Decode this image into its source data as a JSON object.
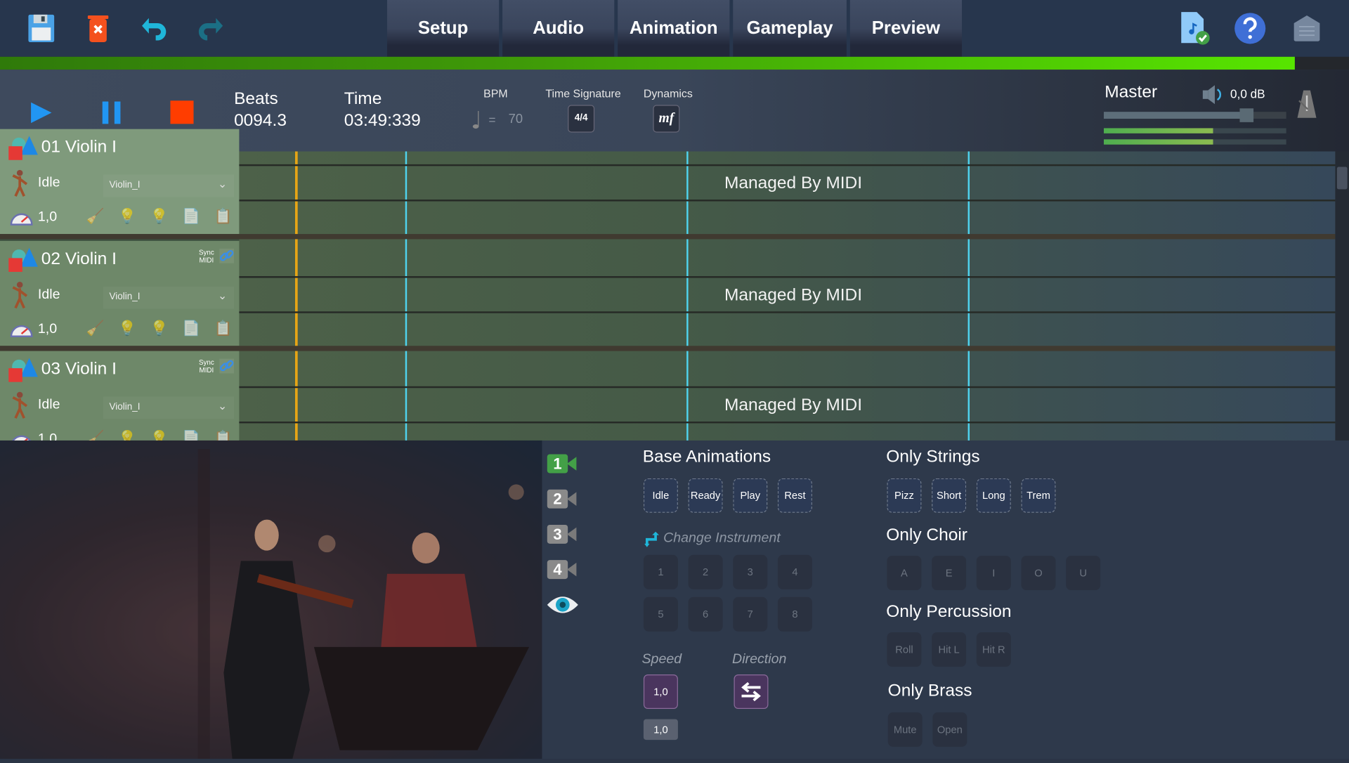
{
  "toolbar": {
    "icons": [
      "save-icon",
      "delete-icon",
      "undo-icon",
      "redo-icon"
    ],
    "right_icons": [
      "midi-file-ok-icon",
      "help-icon",
      "home-icon"
    ]
  },
  "tabs": [
    "Setup",
    "Audio",
    "Animation",
    "Gameplay",
    "Preview"
  ],
  "progress": 0.96,
  "transport": {
    "beats_label": "Beats",
    "beats": "0094.3",
    "time_label": "Time",
    "time": "03:49:339",
    "bpm_label": "BPM",
    "bpm_eq": "=",
    "bpm": "70",
    "timesig_label": "Time Signature",
    "timesig": "4/4",
    "dynamics_label": "Dynamics",
    "dynamics": "mf"
  },
  "master": {
    "label": "Master",
    "db": "0,0 dB",
    "volume": 0.8,
    "meter_l": 0.6,
    "meter_r": 0.6
  },
  "tracks": [
    {
      "name": "01 Violin I",
      "state": "Idle",
      "instrument": "Violin_I",
      "speed": "1,0",
      "lane_text": "Managed By MIDI"
    },
    {
      "name": "02 Violin I",
      "state": "Idle",
      "instrument": "Violin_I",
      "speed": "1,0",
      "lane_text": "Managed By MIDI",
      "sync": "Sync MIDI"
    },
    {
      "name": "03 Violin I",
      "state": "Idle",
      "instrument": "Violin_I",
      "speed": "1,0",
      "lane_text": "Managed By MIDI",
      "sync": "Sync MIDI"
    }
  ],
  "cameras": [
    "1",
    "2",
    "3",
    "4"
  ],
  "panel": {
    "base_title": "Base Animations",
    "base": [
      "Idle",
      "Ready",
      "Play",
      "Rest"
    ],
    "change_instrument": "Change Instrument",
    "instruments": [
      "1",
      "2",
      "3",
      "4",
      "5",
      "6",
      "7",
      "8"
    ],
    "speed_label": "Speed",
    "speed": "1,0",
    "speed_small": "1,0",
    "direction_label": "Direction",
    "strings_title": "Only Strings",
    "strings": [
      "Pizz",
      "Short",
      "Long",
      "Trem"
    ],
    "choir_title": "Only Choir",
    "choir": [
      "A",
      "E",
      "I",
      "O",
      "U"
    ],
    "perc_title": "Only Percussion",
    "perc": [
      "Roll",
      "Hit L",
      "Hit R"
    ],
    "brass_title": "Only Brass",
    "brass": [
      "Mute",
      "Open"
    ]
  }
}
